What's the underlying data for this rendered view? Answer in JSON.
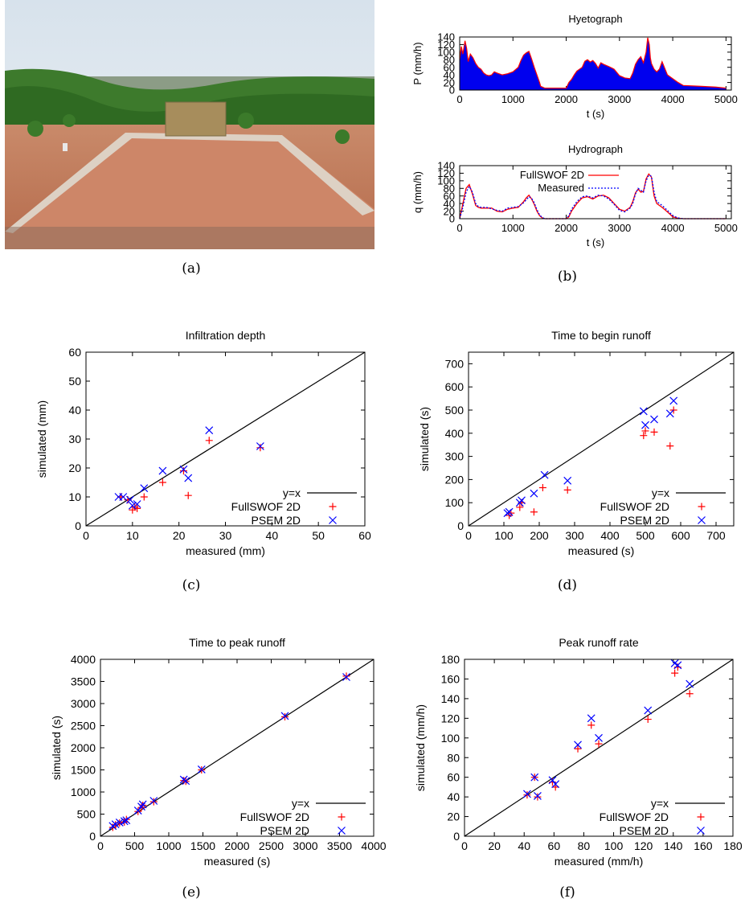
{
  "captions": [
    "(a)",
    "(b)",
    "(c)",
    "(d)",
    "(e)",
    "(f)"
  ],
  "photo": {
    "icon": "field-plot-photo"
  },
  "chart_data": [
    {
      "id": "hyetograph",
      "type": "area",
      "title": "Hyetograph",
      "xlabel": "t (s)",
      "ylabel": "P (mm/h)",
      "xlim": [
        0,
        5100
      ],
      "ylim": [
        0,
        140
      ],
      "xticks": [
        0,
        1000,
        2000,
        3000,
        4000,
        5000
      ],
      "yticks": [
        0,
        20,
        40,
        60,
        80,
        100,
        120,
        140
      ],
      "series": [
        {
          "x": [
            0,
            30,
            60,
            100,
            130,
            160,
            200,
            250,
            300,
            350,
            400,
            450,
            500,
            550,
            600,
            650,
            700,
            800,
            900,
            1000,
            1100,
            1150,
            1200,
            1250,
            1300,
            1350,
            1400,
            1450,
            1500,
            1520,
            1550,
            1600,
            1700,
            1800,
            1900,
            2000,
            2050,
            2100,
            2150,
            2200,
            2250,
            2300,
            2350,
            2400,
            2450,
            2500,
            2550,
            2600,
            2650,
            2700,
            2800,
            2900,
            3000,
            3100,
            3200,
            3250,
            3300,
            3350,
            3400,
            3450,
            3500,
            3530,
            3560,
            3580,
            3600,
            3650,
            3700,
            3750,
            3800,
            3900,
            4000,
            4100,
            4200,
            4500,
            4800,
            5000
          ],
          "values": [
            80,
            115,
            95,
            130,
            110,
            75,
            95,
            85,
            70,
            60,
            55,
            45,
            40,
            38,
            40,
            48,
            45,
            40,
            43,
            48,
            60,
            78,
            92,
            98,
            102,
            82,
            60,
            40,
            20,
            10,
            8,
            5,
            5,
            5,
            5,
            5,
            20,
            28,
            40,
            50,
            55,
            60,
            76,
            80,
            74,
            78,
            70,
            58,
            72,
            68,
            62,
            55,
            38,
            32,
            30,
            45,
            68,
            80,
            88,
            72,
            100,
            138,
            120,
            85,
            70,
            55,
            48,
            55,
            75,
            40,
            30,
            20,
            12,
            10,
            8,
            5
          ]
        }
      ]
    },
    {
      "id": "hydrograph",
      "type": "line",
      "title": "Hydrograph",
      "xlabel": "t (s)",
      "ylabel": "q (mm/h)",
      "xlim": [
        0,
        5100
      ],
      "ylim": [
        0,
        140
      ],
      "xticks": [
        0,
        1000,
        2000,
        3000,
        4000,
        5000
      ],
      "yticks": [
        0,
        20,
        40,
        60,
        80,
        100,
        120,
        140
      ],
      "series": [
        {
          "name": "FullSWOF 2D",
          "color": "#ff0000",
          "style": "solid",
          "x": [
            0,
            60,
            120,
            180,
            240,
            300,
            350,
            400,
            500,
            600,
            700,
            800,
            900,
            1000,
            1100,
            1200,
            1250,
            1300,
            1350,
            1400,
            1450,
            1500,
            1550,
            1600,
            1700,
            1800,
            1900,
            2000,
            2050,
            2100,
            2200,
            2300,
            2400,
            2500,
            2600,
            2700,
            2800,
            2900,
            3000,
            3100,
            3200,
            3250,
            3300,
            3350,
            3400,
            3450,
            3500,
            3550,
            3600,
            3650,
            3700,
            3800,
            3900,
            4000,
            4100,
            4200,
            5000
          ],
          "values": [
            0,
            40,
            80,
            90,
            65,
            35,
            30,
            28,
            28,
            28,
            20,
            18,
            25,
            28,
            30,
            45,
            55,
            62,
            52,
            38,
            20,
            8,
            2,
            0,
            0,
            0,
            0,
            0,
            5,
            20,
            40,
            55,
            58,
            52,
            60,
            62,
            55,
            40,
            25,
            20,
            30,
            45,
            68,
            78,
            70,
            72,
            105,
            118,
            110,
            60,
            40,
            30,
            18,
            5,
            1,
            0,
            0
          ]
        },
        {
          "name": "Measured",
          "color": "#0000ff",
          "style": "dotted",
          "x": [
            0,
            60,
            120,
            180,
            240,
            300,
            350,
            400,
            500,
            600,
            700,
            800,
            900,
            1000,
            1100,
            1200,
            1250,
            1300,
            1350,
            1400,
            1450,
            1500,
            1550,
            1600,
            1700,
            1800,
            1900,
            2000,
            2050,
            2100,
            2200,
            2300,
            2400,
            2500,
            2600,
            2700,
            2800,
            2900,
            3000,
            3100,
            3200,
            3250,
            3300,
            3350,
            3400,
            3450,
            3500,
            3550,
            3600,
            3650,
            3700,
            3800,
            3900,
            4000,
            4100,
            4200,
            5000
          ],
          "values": [
            0,
            30,
            70,
            85,
            70,
            40,
            32,
            30,
            30,
            26,
            22,
            20,
            28,
            30,
            32,
            42,
            50,
            58,
            54,
            42,
            24,
            10,
            3,
            0,
            0,
            0,
            0,
            0,
            8,
            25,
            45,
            58,
            60,
            55,
            62,
            60,
            52,
            38,
            22,
            18,
            28,
            40,
            65,
            80,
            75,
            70,
            100,
            115,
            112,
            70,
            45,
            35,
            22,
            8,
            2,
            0,
            0
          ]
        }
      ],
      "legend": "top-right"
    },
    {
      "id": "infiltration",
      "type": "scatter",
      "title": "Infiltration depth",
      "xlabel": "measured (mm)",
      "ylabel": "simulated (mm)",
      "xlim": [
        0,
        60
      ],
      "ylim": [
        0,
        60
      ],
      "xticks": [
        0,
        10,
        20,
        30,
        40,
        50,
        60
      ],
      "yticks": [
        0,
        10,
        20,
        30,
        40,
        50,
        60
      ],
      "legend_labels": [
        "y=x",
        "FullSWOF 2D",
        "PSEM 2D"
      ],
      "series": [
        {
          "name": "FullSWOF 2D",
          "marker": "plus",
          "color": "#ff0000",
          "x": [
            7.5,
            9,
            10,
            10.5,
            11,
            12.5,
            16.5,
            21,
            22,
            26.5,
            37.5
          ],
          "y": [
            10,
            9,
            5.5,
            6.5,
            6,
            10,
            15,
            19,
            10.5,
            29.5,
            27
          ]
        },
        {
          "name": "PSEM 2D",
          "marker": "cross",
          "color": "#0000ff",
          "x": [
            7,
            8,
            9.5,
            10,
            11,
            12.5,
            16.5,
            21,
            22,
            26.5,
            37.5
          ],
          "y": [
            10,
            10,
            9,
            7,
            7.5,
            13,
            19,
            19.5,
            16.5,
            33,
            27.5
          ]
        }
      ]
    },
    {
      "id": "begin-runoff",
      "type": "scatter",
      "title": "Time to begin runoff",
      "xlabel": "measured (s)",
      "ylabel": "simulated (s)",
      "xlim": [
        0,
        750
      ],
      "ylim": [
        0,
        750
      ],
      "xticks": [
        0,
        100,
        200,
        300,
        400,
        500,
        600,
        700
      ],
      "yticks": [
        0,
        100,
        200,
        300,
        400,
        500,
        600,
        700
      ],
      "legend_labels": [
        "y=x",
        "FullSWOF 2D",
        "PSEM 2D"
      ],
      "series": [
        {
          "name": "FullSWOF 2D",
          "marker": "plus",
          "color": "#ff0000",
          "x": [
            115,
            120,
            145,
            150,
            185,
            210,
            280,
            495,
            500,
            525,
            570,
            580
          ],
          "y": [
            45,
            55,
            80,
            100,
            60,
            165,
            155,
            390,
            410,
            405,
            345,
            500
          ]
        },
        {
          "name": "PSEM 2D",
          "marker": "cross",
          "color": "#0000ff",
          "x": [
            110,
            115,
            145,
            150,
            185,
            215,
            280,
            495,
            500,
            525,
            570,
            580
          ],
          "y": [
            55,
            60,
            100,
            110,
            140,
            220,
            195,
            495,
            435,
            460,
            485,
            540
          ]
        }
      ]
    },
    {
      "id": "peak-time",
      "type": "scatter",
      "title": "Time to peak runoff",
      "xlabel": "measured (s)",
      "ylabel": "simulated (s)",
      "xlim": [
        0,
        4000
      ],
      "ylim": [
        0,
        4000
      ],
      "xticks": [
        0,
        500,
        1000,
        1500,
        2000,
        2500,
        3000,
        3500,
        4000
      ],
      "yticks": [
        0,
        500,
        1000,
        1500,
        2000,
        2500,
        3000,
        3500,
        4000
      ],
      "legend_labels": [
        "y=x",
        "FullSWOF 2D",
        "PSEM 2D"
      ],
      "series": [
        {
          "name": "FullSWOF 2D",
          "marker": "plus",
          "color": "#ff0000",
          "x": [
            180,
            220,
            280,
            350,
            380,
            550,
            600,
            620,
            780,
            1220,
            1250,
            1480,
            2700,
            3600
          ],
          "y": [
            200,
            260,
            300,
            320,
            380,
            560,
            650,
            700,
            780,
            1260,
            1240,
            1500,
            2700,
            3620
          ]
        },
        {
          "name": "PSEM 2D",
          "marker": "cross",
          "color": "#0000ff",
          "x": [
            180,
            220,
            280,
            350,
            380,
            550,
            600,
            620,
            780,
            1220,
            1250,
            1480,
            2700,
            3600
          ],
          "y": [
            230,
            270,
            310,
            340,
            360,
            580,
            670,
            720,
            800,
            1280,
            1250,
            1510,
            2720,
            3600
          ]
        }
      ]
    },
    {
      "id": "peak-rate",
      "type": "scatter",
      "title": "Peak runoff rate",
      "xlabel": "measured (mm/h)",
      "ylabel": "simulated (mm/h)",
      "xlim": [
        0,
        180
      ],
      "ylim": [
        0,
        180
      ],
      "xticks": [
        0,
        20,
        40,
        60,
        80,
        100,
        120,
        140,
        160,
        180
      ],
      "yticks": [
        0,
        20,
        40,
        60,
        80,
        100,
        120,
        140,
        160,
        180
      ],
      "legend_labels": [
        "y=x",
        "FullSWOF 2D",
        "PSEM 2D"
      ],
      "series": [
        {
          "name": "FullSWOF 2D",
          "marker": "plus",
          "color": "#ff0000",
          "x": [
            42,
            47,
            49,
            59,
            61,
            76,
            85,
            90,
            123,
            141,
            143,
            151
          ],
          "y": [
            42,
            60,
            40,
            55,
            50,
            89,
            113,
            94,
            119,
            166,
            172,
            145
          ]
        },
        {
          "name": "PSEM 2D",
          "marker": "cross",
          "color": "#0000ff",
          "x": [
            42,
            47,
            49,
            59,
            61,
            76,
            85,
            90,
            123,
            141,
            143,
            151
          ],
          "y": [
            43,
            60,
            41,
            57,
            53,
            93,
            120,
            100,
            128,
            176,
            174,
            155
          ]
        }
      ]
    }
  ]
}
